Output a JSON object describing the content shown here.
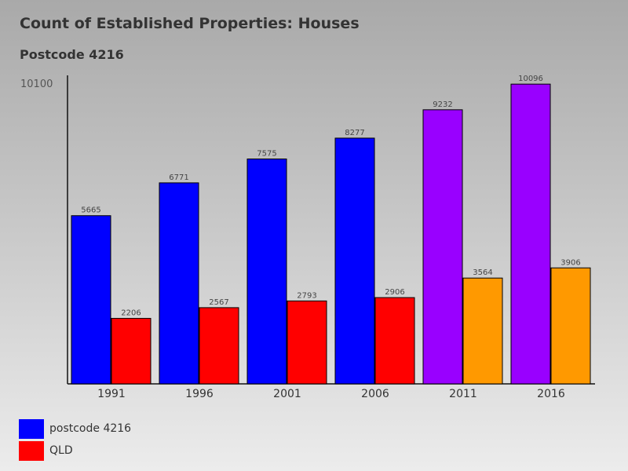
{
  "chart_data": {
    "type": "bar",
    "title": "Count of Established Properties: Houses",
    "subtitle": "Postcode 4216",
    "categories": [
      "1991",
      "1996",
      "2001",
      "2006",
      "2011",
      "2016"
    ],
    "series": [
      {
        "name": "postcode 4216",
        "values": [
          5665,
          6771,
          7575,
          8277,
          9232,
          10096
        ]
      },
      {
        "name": "QLD",
        "values": [
          2206,
          2567,
          2793,
          2906,
          3564,
          3906
        ]
      }
    ],
    "bar_colors": {
      "postcode 4216": [
        "#0000ff",
        "#0000ff",
        "#0000ff",
        "#0000ff",
        "#9900ff",
        "#9900ff"
      ],
      "QLD": [
        "#ff0000",
        "#ff0000",
        "#ff0000",
        "#ff0000",
        "#ff9900",
        "#ff9900"
      ]
    },
    "y_max_label": "10100",
    "ylim": [
      0,
      10100
    ],
    "grid": false,
    "legend_position": "bottom-left"
  },
  "legend": [
    {
      "label": "postcode 4216",
      "color": "#0000ff"
    },
    {
      "label": "QLD",
      "color": "#ff0000"
    }
  ]
}
